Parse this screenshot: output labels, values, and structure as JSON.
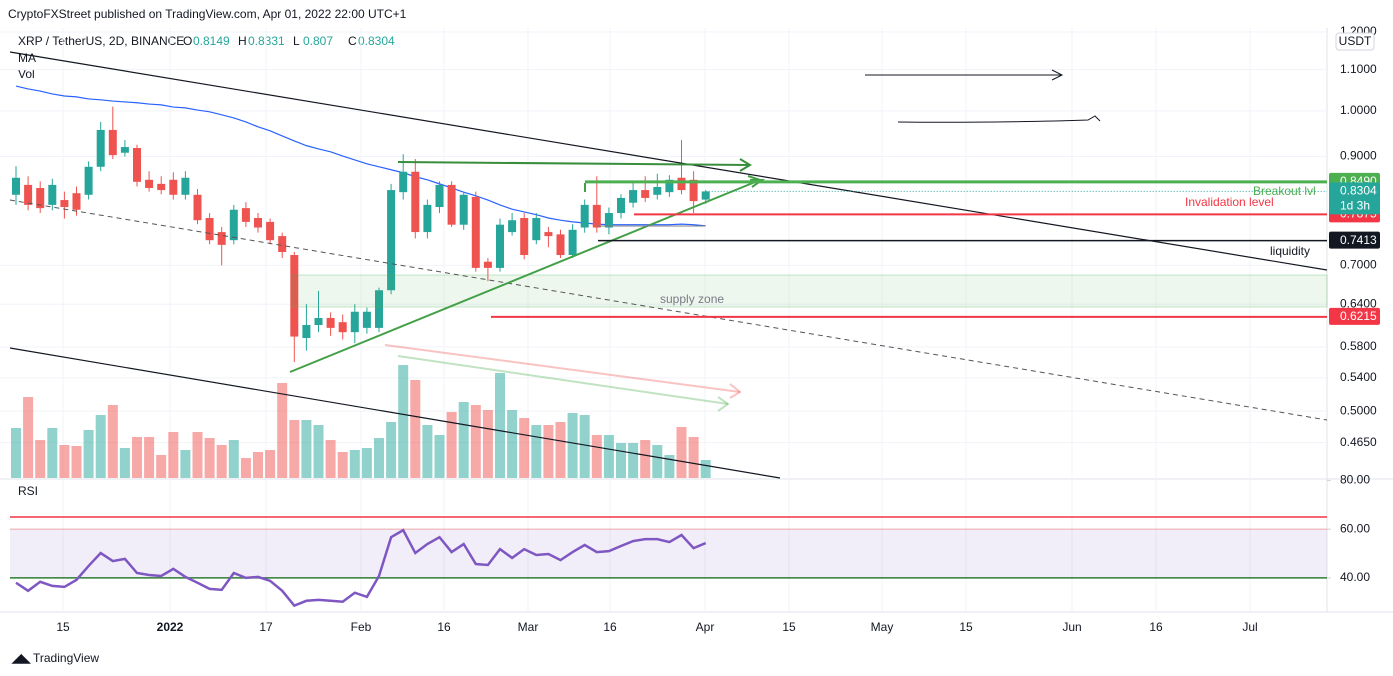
{
  "publisher": "CryptoFXStreet published on TradingView.com, Apr 01, 2022 22:00 UTC+1",
  "footer": "TradingView",
  "chart_data": {
    "type": "candlestick",
    "title": "XRP / TetherUS, 2D, BINANCE",
    "ohlc_labels": [
      "O",
      "H",
      "L",
      "C"
    ],
    "up_color": "#26a69a",
    "down_color": "#ef5350",
    "categories": [
      null,
      null,
      null,
      null,
      null,
      null,
      null,
      null,
      null,
      null,
      null,
      null,
      null,
      null,
      null,
      null,
      null,
      null,
      null,
      null,
      null,
      null,
      null,
      null,
      null,
      null,
      null,
      null,
      null,
      null,
      null,
      null,
      null,
      null,
      null,
      null,
      null,
      null,
      null,
      null,
      null,
      null,
      null,
      null,
      null,
      null,
      null,
      null,
      null,
      null,
      null,
      null,
      null,
      null,
      null,
      null,
      null,
      null
    ],
    "open": [
      0.824,
      0.843,
      0.837,
      0.805,
      0.814,
      0.827,
      0.824,
      0.879,
      0.957,
      0.908,
      0.918,
      0.853,
      0.845,
      0.853,
      0.824,
      0.824,
      0.781,
      0.756,
      0.742,
      0.799,
      0.781,
      0.774,
      0.749,
      0.717,
      0.592,
      0.61,
      0.62,
      0.614,
      0.6,
      0.606,
      0.606,
      0.661,
      0.829,
      0.869,
      0.756,
      0.801,
      0.843,
      0.769,
      0.82,
      0.706,
      0.696,
      0.756,
      0.781,
      0.742,
      0.756,
      0.752,
      0.717,
      0.764,
      0.805,
      0.764,
      0.79,
      0.809,
      0.833,
      0.824,
      0.829,
      0.857,
      0.853,
      0.8149
    ],
    "high": [
      0.88,
      0.86,
      0.85,
      0.855,
      0.83,
      0.84,
      0.89,
      0.975,
      1.01,
      0.935,
      0.925,
      0.87,
      0.86,
      0.868,
      0.87,
      0.835,
      0.79,
      0.765,
      0.805,
      0.81,
      0.79,
      0.78,
      0.755,
      0.722,
      0.64,
      0.66,
      0.628,
      0.625,
      0.64,
      0.635,
      0.665,
      0.845,
      0.905,
      0.895,
      0.815,
      0.85,
      0.85,
      0.83,
      0.83,
      0.712,
      0.78,
      0.79,
      0.79,
      0.79,
      0.765,
      0.76,
      0.77,
      0.815,
      0.86,
      0.8,
      0.825,
      0.85,
      0.86,
      0.865,
      0.862,
      0.935,
      0.87,
      0.8331
    ],
    "low": [
      0.805,
      0.795,
      0.79,
      0.795,
      0.78,
      0.785,
      0.815,
      0.87,
      0.895,
      0.9,
      0.84,
      0.83,
      0.825,
      0.815,
      0.815,
      0.77,
      0.735,
      0.7,
      0.735,
      0.765,
      0.755,
      0.735,
      0.712,
      0.56,
      0.575,
      0.6,
      0.595,
      0.59,
      0.585,
      0.598,
      0.6,
      0.655,
      0.815,
      0.745,
      0.745,
      0.79,
      0.765,
      0.76,
      0.69,
      0.675,
      0.69,
      0.75,
      0.71,
      0.735,
      0.73,
      0.712,
      0.712,
      0.755,
      0.755,
      0.752,
      0.78,
      0.8,
      0.81,
      0.815,
      0.82,
      0.825,
      0.79,
      0.807
    ],
    "close": [
      0.857,
      0.805,
      0.799,
      0.843,
      0.801,
      0.796,
      0.879,
      0.957,
      0.903,
      0.92,
      0.849,
      0.837,
      0.833,
      0.824,
      0.857,
      0.777,
      0.742,
      0.734,
      0.796,
      0.774,
      0.764,
      0.742,
      0.722,
      0.594,
      0.61,
      0.62,
      0.606,
      0.6,
      0.629,
      0.629,
      0.661,
      0.833,
      0.869,
      0.756,
      0.805,
      0.843,
      0.769,
      0.824,
      0.696,
      0.696,
      0.769,
      0.777,
      0.717,
      0.781,
      0.749,
      0.717,
      0.76,
      0.805,
      0.764,
      0.79,
      0.818,
      0.833,
      0.818,
      0.839,
      0.853,
      0.833,
      0.812,
      0.8304
    ],
    "ma": {
      "name": "MA",
      "color": "#2962ff",
      "values": [
        1.059,
        1.052,
        1.047,
        1.04,
        1.035,
        1.033,
        1.028,
        1.026,
        1.023,
        1.021,
        1.019,
        1.016,
        1.014,
        1.009,
        1.007,
        1.002,
        0.998,
        0.991,
        0.984,
        0.975,
        0.964,
        0.955,
        0.944,
        0.933,
        0.923,
        0.916,
        0.91,
        0.901,
        0.893,
        0.885,
        0.879,
        0.873,
        0.867,
        0.859,
        0.853,
        0.845,
        0.837,
        0.829,
        0.822,
        0.814,
        0.805,
        0.797,
        0.792,
        0.787,
        0.781,
        0.777,
        0.774,
        0.772,
        0.77,
        0.769,
        0.769,
        0.769,
        0.769,
        0.769,
        0.769,
        0.77,
        0.769,
        0.767
      ]
    },
    "volume": {
      "name": "Vol",
      "values": [
        50,
        81,
        38,
        50,
        33,
        32,
        48,
        63,
        73,
        30,
        41,
        41,
        23,
        46,
        28,
        46,
        40,
        33,
        38,
        20,
        26,
        28,
        95,
        58,
        58,
        53,
        38,
        26,
        28,
        30,
        40,
        56,
        113,
        98,
        53,
        43,
        66,
        76,
        73,
        68,
        105,
        68,
        60,
        53,
        53,
        56,
        65,
        63,
        43,
        43,
        35,
        35,
        38,
        33,
        23,
        51,
        41,
        18
      ]
    },
    "rsi": {
      "name": "RSI",
      "color": "#7e57c2",
      "values": [
        38.0,
        34.7,
        38.4,
        36.7,
        36.3,
        39.2,
        44.9,
        50.2,
        46.9,
        47.8,
        42.0,
        41.2,
        40.8,
        43.7,
        40.4,
        38.0,
        35.5,
        35.1,
        42.0,
        40.0,
        40.4,
        38.8,
        34.7,
        28.6,
        30.6,
        31.0,
        30.6,
        30.2,
        33.9,
        32.2,
        40.8,
        56.7,
        59.6,
        50.2,
        53.9,
        56.7,
        50.6,
        53.9,
        45.7,
        45.3,
        51.8,
        48.2,
        51.8,
        49.4,
        49.8,
        47.3,
        50.6,
        53.5,
        50.6,
        51.0,
        53.1,
        55.1,
        55.9,
        55.9,
        54.7,
        57.6,
        52.2,
        54.3
      ],
      "ylim": [
        26,
        81
      ],
      "yticks": [
        {
          "value": 80,
          "label": "80.00"
        },
        {
          "value": 60,
          "label": "60.00"
        },
        {
          "value": 40,
          "label": "40.00"
        }
      ],
      "band": [
        40,
        60
      ],
      "lines": [
        {
          "value": 65,
          "color": "#f23645"
        },
        {
          "value": 40,
          "color": "#2e7d32"
        }
      ]
    },
    "log_scale": true,
    "ylim": [
      0.4285,
      1.211
    ],
    "y_unit": "USDT",
    "yticks": [
      {
        "value": 1.2,
        "label": "1.2000"
      },
      {
        "value": 1.1,
        "label": "1.1000"
      },
      {
        "value": 1.0,
        "label": "1.0000"
      },
      {
        "value": 0.9,
        "label": "0.9000"
      },
      {
        "value": 0.7,
        "label": "0.7000"
      },
      {
        "value": 0.64,
        "label": "0.6400"
      },
      {
        "value": 0.58,
        "label": "0.5800"
      },
      {
        "value": 0.54,
        "label": "0.5400"
      },
      {
        "value": 0.5,
        "label": "0.5000"
      },
      {
        "value": 0.465,
        "label": "0.4650"
      }
    ],
    "xticks": [
      "15",
      "2022",
      "17",
      "Feb",
      "16",
      "Mar",
      "16",
      "Apr",
      "15",
      "May",
      "15",
      "Jun",
      "16",
      "Jul"
    ],
    "price_lines": [
      {
        "value": 0.849,
        "label": "0.8490",
        "color": "#4caf50"
      },
      {
        "value": 0.7875,
        "label": "0.7875",
        "color": "#f23645"
      },
      {
        "value": 0.7413,
        "label": "0.7413",
        "color": "#131722"
      },
      {
        "value": 0.6215,
        "label": "0.6215",
        "color": "#f23645"
      }
    ],
    "countdown": "1d 3h",
    "annotations": [
      "supply zone",
      "Breakout lvl",
      "Invalidation level",
      "liquidity"
    ]
  }
}
